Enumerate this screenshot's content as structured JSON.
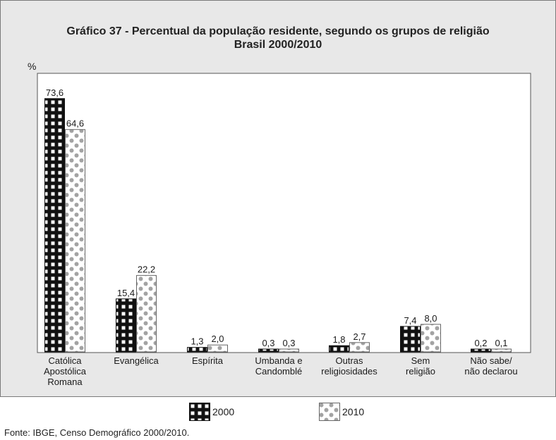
{
  "chart_data": {
    "type": "bar",
    "title": "Gráfico 37 - Percentual da população residente, segundo os grupos de religião",
    "subtitle": "Brasil 2000/2010",
    "ylabel": "%",
    "xlabel": "",
    "ylim": [
      0,
      80
    ],
    "grid": false,
    "legend_position": "bottom",
    "categories": [
      [
        "Católica",
        "Apostólica",
        "Romana"
      ],
      [
        "Evangélica"
      ],
      [
        "Espírita"
      ],
      [
        "Umbanda e",
        "Candomblé"
      ],
      [
        "Outras",
        "religiosidades"
      ],
      [
        "Sem",
        "religião"
      ],
      [
        "Não sabe/",
        "não declarou"
      ]
    ],
    "series": [
      {
        "name": "2000",
        "pattern": "black-grid",
        "values": [
          73.6,
          15.4,
          1.3,
          0.3,
          1.8,
          7.4,
          0.2
        ],
        "labels": [
          "73,6",
          "15,4",
          "1,3",
          "0,3",
          "1,8",
          "7,4",
          "0,2"
        ]
      },
      {
        "name": "2010",
        "pattern": "gray-dots",
        "values": [
          64.6,
          22.2,
          2.0,
          0.3,
          2.7,
          8.0,
          0.1
        ],
        "labels": [
          "64,6",
          "22,2",
          "2,0",
          "0,3",
          "2,7",
          "8,0",
          "0,1"
        ]
      }
    ],
    "source": "Fonte: IBGE, Censo Demográfico 2000/2010."
  },
  "colors": {
    "frame_bg": "#e8e8e8",
    "plot_bg": "#ffffff",
    "series_2000_fill": "#111111",
    "series_2000_cells": "#ffffff",
    "series_2010_bg": "#ffffff",
    "series_2010_dots": "#a3a3a3"
  }
}
